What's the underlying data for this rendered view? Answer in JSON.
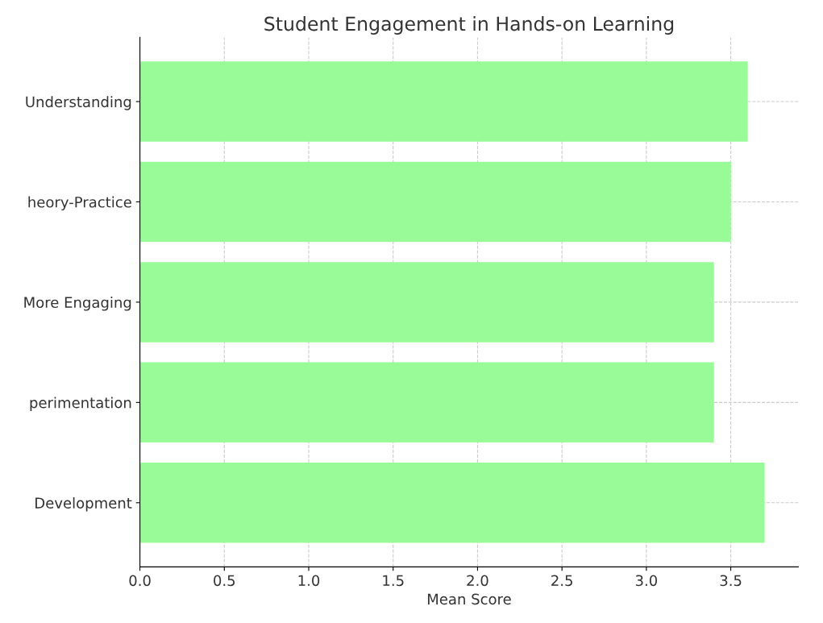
{
  "chart_data": {
    "type": "bar",
    "orientation": "horizontal",
    "title": "Student Engagement in Hands-on Learning",
    "xlabel": "Mean Score",
    "categories": [
      "Understanding",
      "heory-Practice",
      "More Engaging",
      "perimentation",
      "Development"
    ],
    "values": [
      3.6,
      3.5,
      3.4,
      3.4,
      3.7
    ],
    "color": "#98fb98",
    "xlim": [
      0,
      3.9
    ],
    "xticks": [
      {
        "value": 0,
        "label": "0.0"
      },
      0.5,
      {
        "value": 1,
        "label": "1.0"
      },
      1.5,
      {
        "value": 2,
        "label": "2.0"
      },
      2.5,
      {
        "value": 3,
        "label": "3.0"
      },
      3.5
    ],
    "grid": true
  }
}
